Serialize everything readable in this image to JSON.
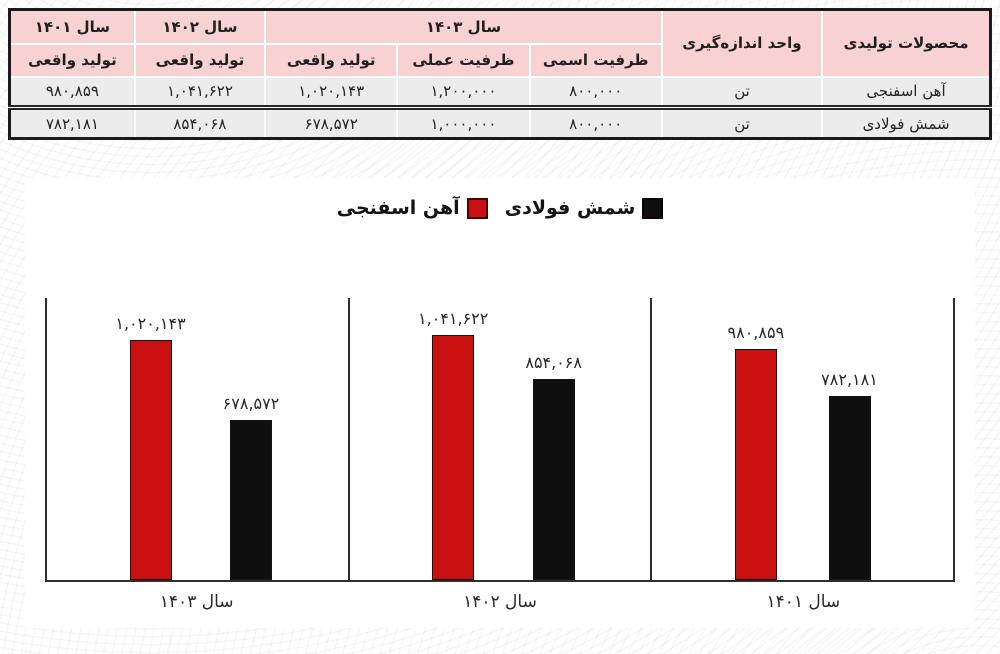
{
  "table": {
    "header": {
      "products": "محصولات تولیدی",
      "unit": "واحد اندازه‌گیری",
      "year_1403": "سال ۱۴۰۳",
      "year_1402": "سال ۱۴۰۲",
      "year_1401": "سال ۱۴۰۱",
      "sub_nominal": "ظرفیت اسمی",
      "sub_practical": "ظرفیت عملی",
      "sub_actual": "تولید واقعی"
    },
    "rows": [
      {
        "product": "آهن اسفنجی",
        "unit": "تن",
        "nominal": "۸۰۰,۰۰۰",
        "practical": "۱,۲۰۰,۰۰۰",
        "actual_1403": "۱,۰۲۰,۱۴۳",
        "actual_1402": "۱,۰۴۱,۶۲۲",
        "actual_1401": "۹۸۰,۸۵۹"
      },
      {
        "product": "شمش فولادی",
        "unit": "تن",
        "nominal": "۸۰۰,۰۰۰",
        "practical": "۱,۰۰۰,۰۰۰",
        "actual_1403": "۶۷۸,۵۷۲",
        "actual_1402": "۸۵۴,۰۶۸",
        "actual_1401": "۷۸۲,۱۸۱"
      }
    ],
    "colors": {
      "header_bg": "#f8d2d2",
      "row_bg": "#ececec",
      "border": "#1a1a1a"
    }
  },
  "chart_data": {
    "type": "bar",
    "direction": "rtl",
    "legend_position": "top-center",
    "grid": false,
    "y_axis_visible": false,
    "ylim": [
      0,
      1200000
    ],
    "legend": [
      {
        "name": "آهن اسفنجی",
        "color": "#c90f0f"
      },
      {
        "name": "شمش فولادی",
        "color": "#0f0f0f"
      }
    ],
    "categories_visual_left_to_right": [
      "سال ۱۴۰۳",
      "سال ۱۴۰۲",
      "سال ۱۴۰۱"
    ],
    "groups": [
      {
        "category": "سال ۱۴۰۳",
        "values": [
          1020143,
          678572
        ],
        "labels": [
          "۱,۰۲۰,۱۴۳",
          "۶۷۸,۵۷۲"
        ]
      },
      {
        "category": "سال ۱۴۰۲",
        "values": [
          1041622,
          854068
        ],
        "labels": [
          "۱,۰۴۱,۶۲۲",
          "۸۵۴,۰۶۸"
        ]
      },
      {
        "category": "سال ۱۴۰۱",
        "values": [
          980859,
          782181
        ],
        "labels": [
          "۹۸۰,۸۵۹",
          "۷۸۲,۱۸۱"
        ]
      }
    ],
    "series": [
      {
        "name": "آهن اسفنجی",
        "color": "#c90f0f",
        "values_by_category": {
          "سال ۱۴۰۳": 1020143,
          "سال ۱۴۰۲": 1041622,
          "سال ۱۴۰۱": 980859
        }
      },
      {
        "name": "شمش فولادی",
        "color": "#0f0f0f",
        "values_by_category": {
          "سال ۱۴۰۳": 678572,
          "سال ۱۴۰۲": 854068,
          "سال ۱۴۰۱": 782181
        }
      }
    ]
  }
}
